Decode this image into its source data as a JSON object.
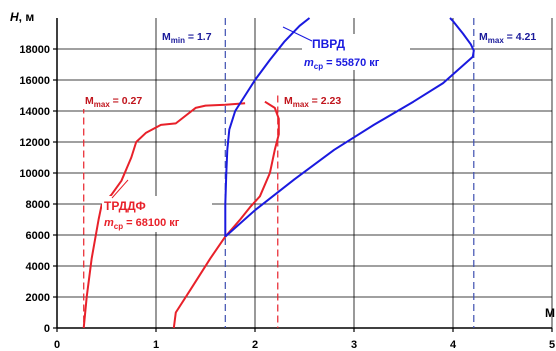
{
  "chart_data": {
    "type": "line",
    "ylabel_var": "H",
    "ylabel_unit": ", м",
    "xlabel": "М",
    "xlim": [
      0,
      5
    ],
    "ylim": [
      0,
      20000
    ],
    "xticks": [
      0,
      1,
      2,
      3,
      4,
      5
    ],
    "yticks": [
      0,
      2000,
      4000,
      6000,
      8000,
      10000,
      12000,
      14000,
      16000,
      18000
    ],
    "grid": true,
    "series": [
      {
        "name": "ТРДДФ",
        "mass_label": "68100 кг",
        "color": "#e8212a",
        "points": [
          [
            0.27,
            0
          ],
          [
            0.3,
            2000
          ],
          [
            0.35,
            4500
          ],
          [
            0.42,
            7000
          ],
          [
            0.45,
            7900
          ],
          [
            0.55,
            8600
          ],
          [
            0.65,
            9500
          ],
          [
            0.75,
            11000
          ],
          [
            0.8,
            12000
          ],
          [
            0.9,
            12600
          ],
          [
            1.05,
            13100
          ],
          [
            1.2,
            13200
          ],
          [
            1.3,
            13700
          ],
          [
            1.4,
            14200
          ],
          [
            1.5,
            14350
          ],
          [
            1.7,
            14400
          ],
          [
            1.9,
            14500
          ]
        ]
      },
      {
        "name": "ТРДДФ (M max)",
        "color": "#e8212a",
        "points": [
          [
            1.18,
            0
          ],
          [
            1.2,
            1000
          ],
          [
            1.35,
            2500
          ],
          [
            1.55,
            4500
          ],
          [
            1.7,
            5900
          ],
          [
            1.85,
            7000
          ],
          [
            1.95,
            7800
          ],
          [
            2.05,
            8500
          ],
          [
            2.15,
            10000
          ],
          [
            2.2,
            11500
          ],
          [
            2.24,
            12500
          ],
          [
            2.24,
            13500
          ],
          [
            2.2,
            14200
          ],
          [
            2.1,
            14600
          ]
        ]
      },
      {
        "name": "ПВРД",
        "mass_label": "55870 кг",
        "color": "#1a1adf",
        "points": [
          [
            1.7,
            5900
          ],
          [
            1.7,
            8000
          ],
          [
            1.71,
            10000
          ],
          [
            1.72,
            11500
          ],
          [
            1.74,
            12800
          ],
          [
            1.8,
            14000
          ],
          [
            1.9,
            15000
          ],
          [
            2.0,
            16000
          ],
          [
            2.15,
            17300
          ],
          [
            2.3,
            18500
          ],
          [
            2.45,
            19500
          ],
          [
            2.55,
            20000
          ]
        ]
      },
      {
        "name": "ПВРД (M max)",
        "color": "#1a1adf",
        "points": [
          [
            1.7,
            5900
          ],
          [
            2.0,
            7600
          ],
          [
            2.4,
            9600
          ],
          [
            2.8,
            11500
          ],
          [
            3.2,
            13100
          ],
          [
            3.6,
            14600
          ],
          [
            3.9,
            15800
          ],
          [
            4.2,
            17500
          ],
          [
            4.21,
            17900
          ],
          [
            4.18,
            18300
          ],
          [
            4.1,
            19000
          ],
          [
            4.0,
            19800
          ],
          [
            3.97,
            20000
          ]
        ]
      }
    ],
    "vlines": [
      {
        "x": 0.27,
        "color": "#e8212a",
        "y_top": 15000
      },
      {
        "x": 2.23,
        "color": "#e8212a",
        "y_top": 15000
      },
      {
        "x": 1.7,
        "color": "#3d4fb0",
        "y_top": 20000
      },
      {
        "x": 4.21,
        "color": "#3d4fb0",
        "y_top": 20000
      }
    ],
    "annotations": {
      "mmax_red_left": {
        "base": "M",
        "sub": "max",
        "value": " = 0.27",
        "color": "#c0141c"
      },
      "mmax_red_right": {
        "base": "M",
        "sub": "max",
        "value": " = 2.23",
        "color": "#c0141c"
      },
      "mmin_blue": {
        "base": "M",
        "sub": "min",
        "value": " = 1.7",
        "color": "#1a1a9a"
      },
      "mmax_blue": {
        "base": "M",
        "sub": "max",
        "value": " = 4.21",
        "color": "#1a1a9a"
      },
      "trddf_name": {
        "text": "ТРДДФ",
        "color": "#e8212a"
      },
      "trddf_mass": {
        "base": "m",
        "sub": "ср",
        "value": " = 68100 кг",
        "color": "#e8212a"
      },
      "pvrd_name": {
        "text": "ПВРД",
        "color": "#1a1adf"
      },
      "pvrd_mass": {
        "base": "m",
        "sub": "ср",
        "value": " = 55870 кг",
        "color": "#1a1adf"
      }
    }
  }
}
